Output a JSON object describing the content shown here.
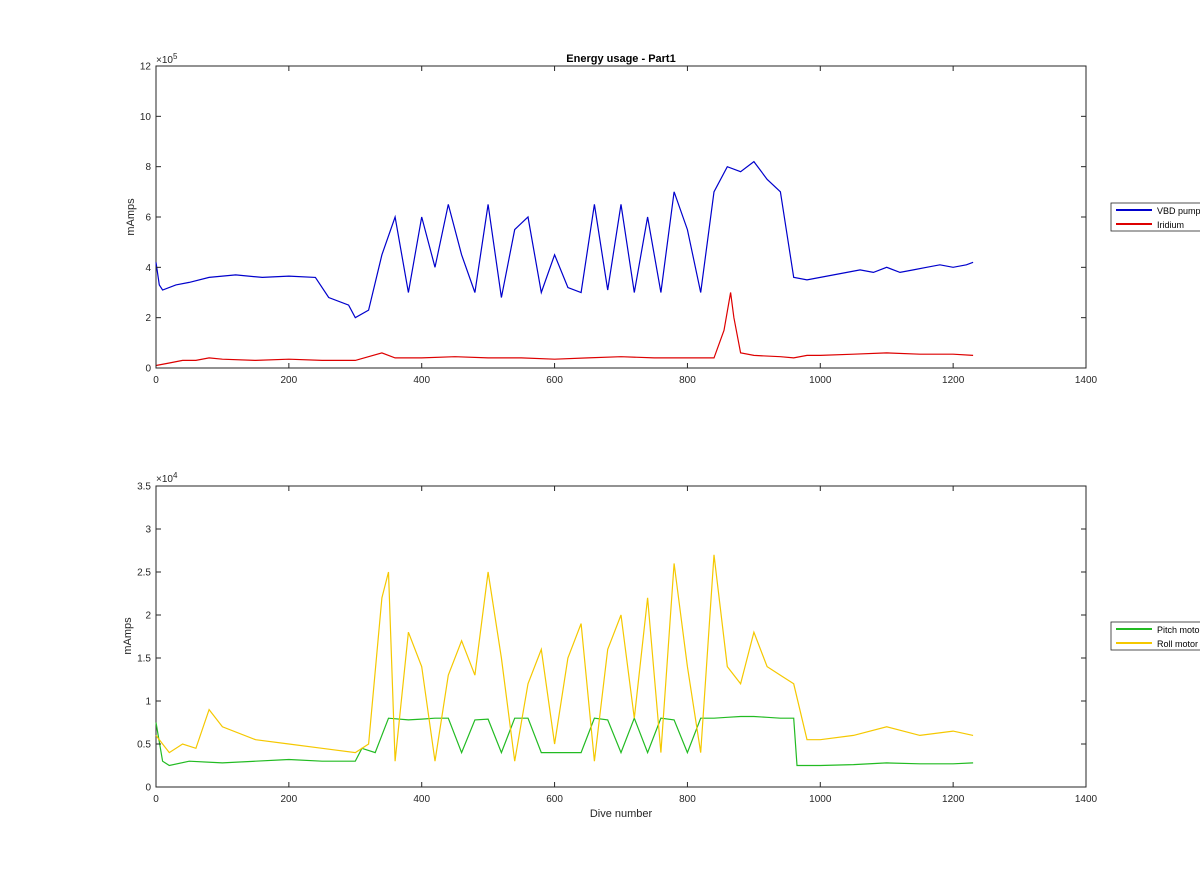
{
  "chart_data": [
    {
      "type": "line",
      "title": "Energy usage - Part1",
      "xlabel": "",
      "ylabel": "mAmps",
      "xlim": [
        0,
        1400
      ],
      "ylim": [
        0,
        1200000
      ],
      "x_ticks": [
        "0",
        "200",
        "400",
        "600",
        "800",
        "1000",
        "1200",
        "1400"
      ],
      "y_ticks": [
        "0",
        "2",
        "4",
        "6",
        "8",
        "10",
        "12"
      ],
      "y_exponent_label": "×10",
      "y_exponent": "5",
      "grid": false,
      "legend_position": "outside-right",
      "series": [
        {
          "name": "VBD pump",
          "color": "#0000cc",
          "x": [
            0,
            5,
            10,
            30,
            50,
            80,
            120,
            160,
            200,
            240,
            260,
            290,
            300,
            320,
            340,
            360,
            380,
            400,
            420,
            440,
            460,
            480,
            500,
            520,
            540,
            560,
            580,
            600,
            620,
            640,
            660,
            680,
            700,
            720,
            740,
            760,
            780,
            800,
            820,
            840,
            860,
            880,
            900,
            920,
            940,
            960,
            980,
            1000,
            1020,
            1040,
            1060,
            1080,
            1100,
            1120,
            1140,
            1160,
            1180,
            1200,
            1220,
            1230
          ],
          "y": [
            420000,
            330000,
            310000,
            330000,
            340000,
            360000,
            370000,
            360000,
            365000,
            360000,
            280000,
            250000,
            200000,
            230000,
            450000,
            600000,
            300000,
            600000,
            400000,
            650000,
            450000,
            300000,
            650000,
            280000,
            550000,
            600000,
            300000,
            450000,
            320000,
            300000,
            650000,
            310000,
            650000,
            300000,
            600000,
            300000,
            700000,
            550000,
            300000,
            700000,
            800000,
            780000,
            820000,
            750000,
            700000,
            360000,
            350000,
            360000,
            370000,
            380000,
            390000,
            380000,
            400000,
            380000,
            390000,
            400000,
            410000,
            400000,
            410000,
            420000
          ]
        },
        {
          "name": "Iridium",
          "color": "#dd0000",
          "x": [
            0,
            20,
            40,
            60,
            80,
            100,
            150,
            200,
            250,
            300,
            340,
            360,
            400,
            450,
            500,
            550,
            600,
            650,
            700,
            750,
            800,
            840,
            855,
            865,
            870,
            880,
            900,
            940,
            960,
            980,
            1000,
            1050,
            1100,
            1150,
            1200,
            1230
          ],
          "y": [
            10000,
            20000,
            30000,
            30000,
            40000,
            35000,
            30000,
            35000,
            30000,
            30000,
            60000,
            40000,
            40000,
            45000,
            40000,
            40000,
            35000,
            40000,
            45000,
            40000,
            40000,
            40000,
            150000,
            300000,
            200000,
            60000,
            50000,
            45000,
            40000,
            50000,
            50000,
            55000,
            60000,
            55000,
            55000,
            50000
          ]
        }
      ]
    },
    {
      "type": "line",
      "title": "",
      "xlabel": "Dive number",
      "ylabel": "mAmps",
      "xlim": [
        0,
        1400
      ],
      "ylim": [
        0,
        35000
      ],
      "x_ticks": [
        "0",
        "200",
        "400",
        "600",
        "800",
        "1000",
        "1200",
        "1400"
      ],
      "y_ticks": [
        "0",
        "0.5",
        "1",
        "1.5",
        "2",
        "2.5",
        "3",
        "3.5"
      ],
      "y_exponent_label": "×10",
      "y_exponent": "4",
      "grid": false,
      "legend_position": "outside-right",
      "series": [
        {
          "name": "Pitch motor",
          "color": "#22bb22",
          "x": [
            0,
            10,
            20,
            50,
            100,
            150,
            200,
            250,
            300,
            310,
            330,
            350,
            380,
            400,
            420,
            440,
            460,
            480,
            500,
            520,
            540,
            560,
            580,
            600,
            620,
            640,
            660,
            680,
            700,
            720,
            740,
            760,
            780,
            800,
            820,
            840,
            860,
            880,
            900,
            920,
            940,
            960,
            965,
            1000,
            1050,
            1100,
            1150,
            1200,
            1230
          ],
          "y": [
            7500,
            3000,
            2500,
            3000,
            2800,
            3000,
            3200,
            3000,
            3000,
            4500,
            4000,
            8000,
            7800,
            7900,
            8000,
            8000,
            4000,
            7800,
            7900,
            4000,
            8000,
            8000,
            4000,
            4000,
            4000,
            4000,
            8000,
            7800,
            4000,
            8000,
            4000,
            8000,
            7800,
            4000,
            8000,
            8000,
            8100,
            8200,
            8200,
            8100,
            8000,
            8000,
            2500,
            2500,
            2600,
            2800,
            2700,
            2700,
            2800
          ]
        },
        {
          "name": "Roll motor",
          "color": "#f5c800",
          "x": [
            0,
            10,
            20,
            40,
            60,
            80,
            100,
            150,
            200,
            250,
            300,
            320,
            340,
            350,
            360,
            380,
            400,
            420,
            440,
            460,
            480,
            500,
            520,
            540,
            560,
            580,
            600,
            620,
            640,
            660,
            680,
            700,
            720,
            740,
            760,
            780,
            800,
            820,
            840,
            860,
            880,
            900,
            920,
            940,
            960,
            980,
            1000,
            1050,
            1100,
            1150,
            1200,
            1230
          ],
          "y": [
            6000,
            5000,
            4000,
            5000,
            4500,
            9000,
            7000,
            5500,
            5000,
            4500,
            4000,
            5000,
            22000,
            25000,
            3000,
            18000,
            14000,
            3000,
            13000,
            17000,
            13000,
            25000,
            15000,
            3000,
            12000,
            16000,
            5000,
            15000,
            19000,
            3000,
            16000,
            20000,
            8000,
            22000,
            4000,
            26000,
            14000,
            4000,
            27000,
            14000,
            12000,
            18000,
            14000,
            13000,
            12000,
            5500,
            5500,
            6000,
            7000,
            6000,
            6500,
            6000
          ]
        }
      ]
    }
  ]
}
